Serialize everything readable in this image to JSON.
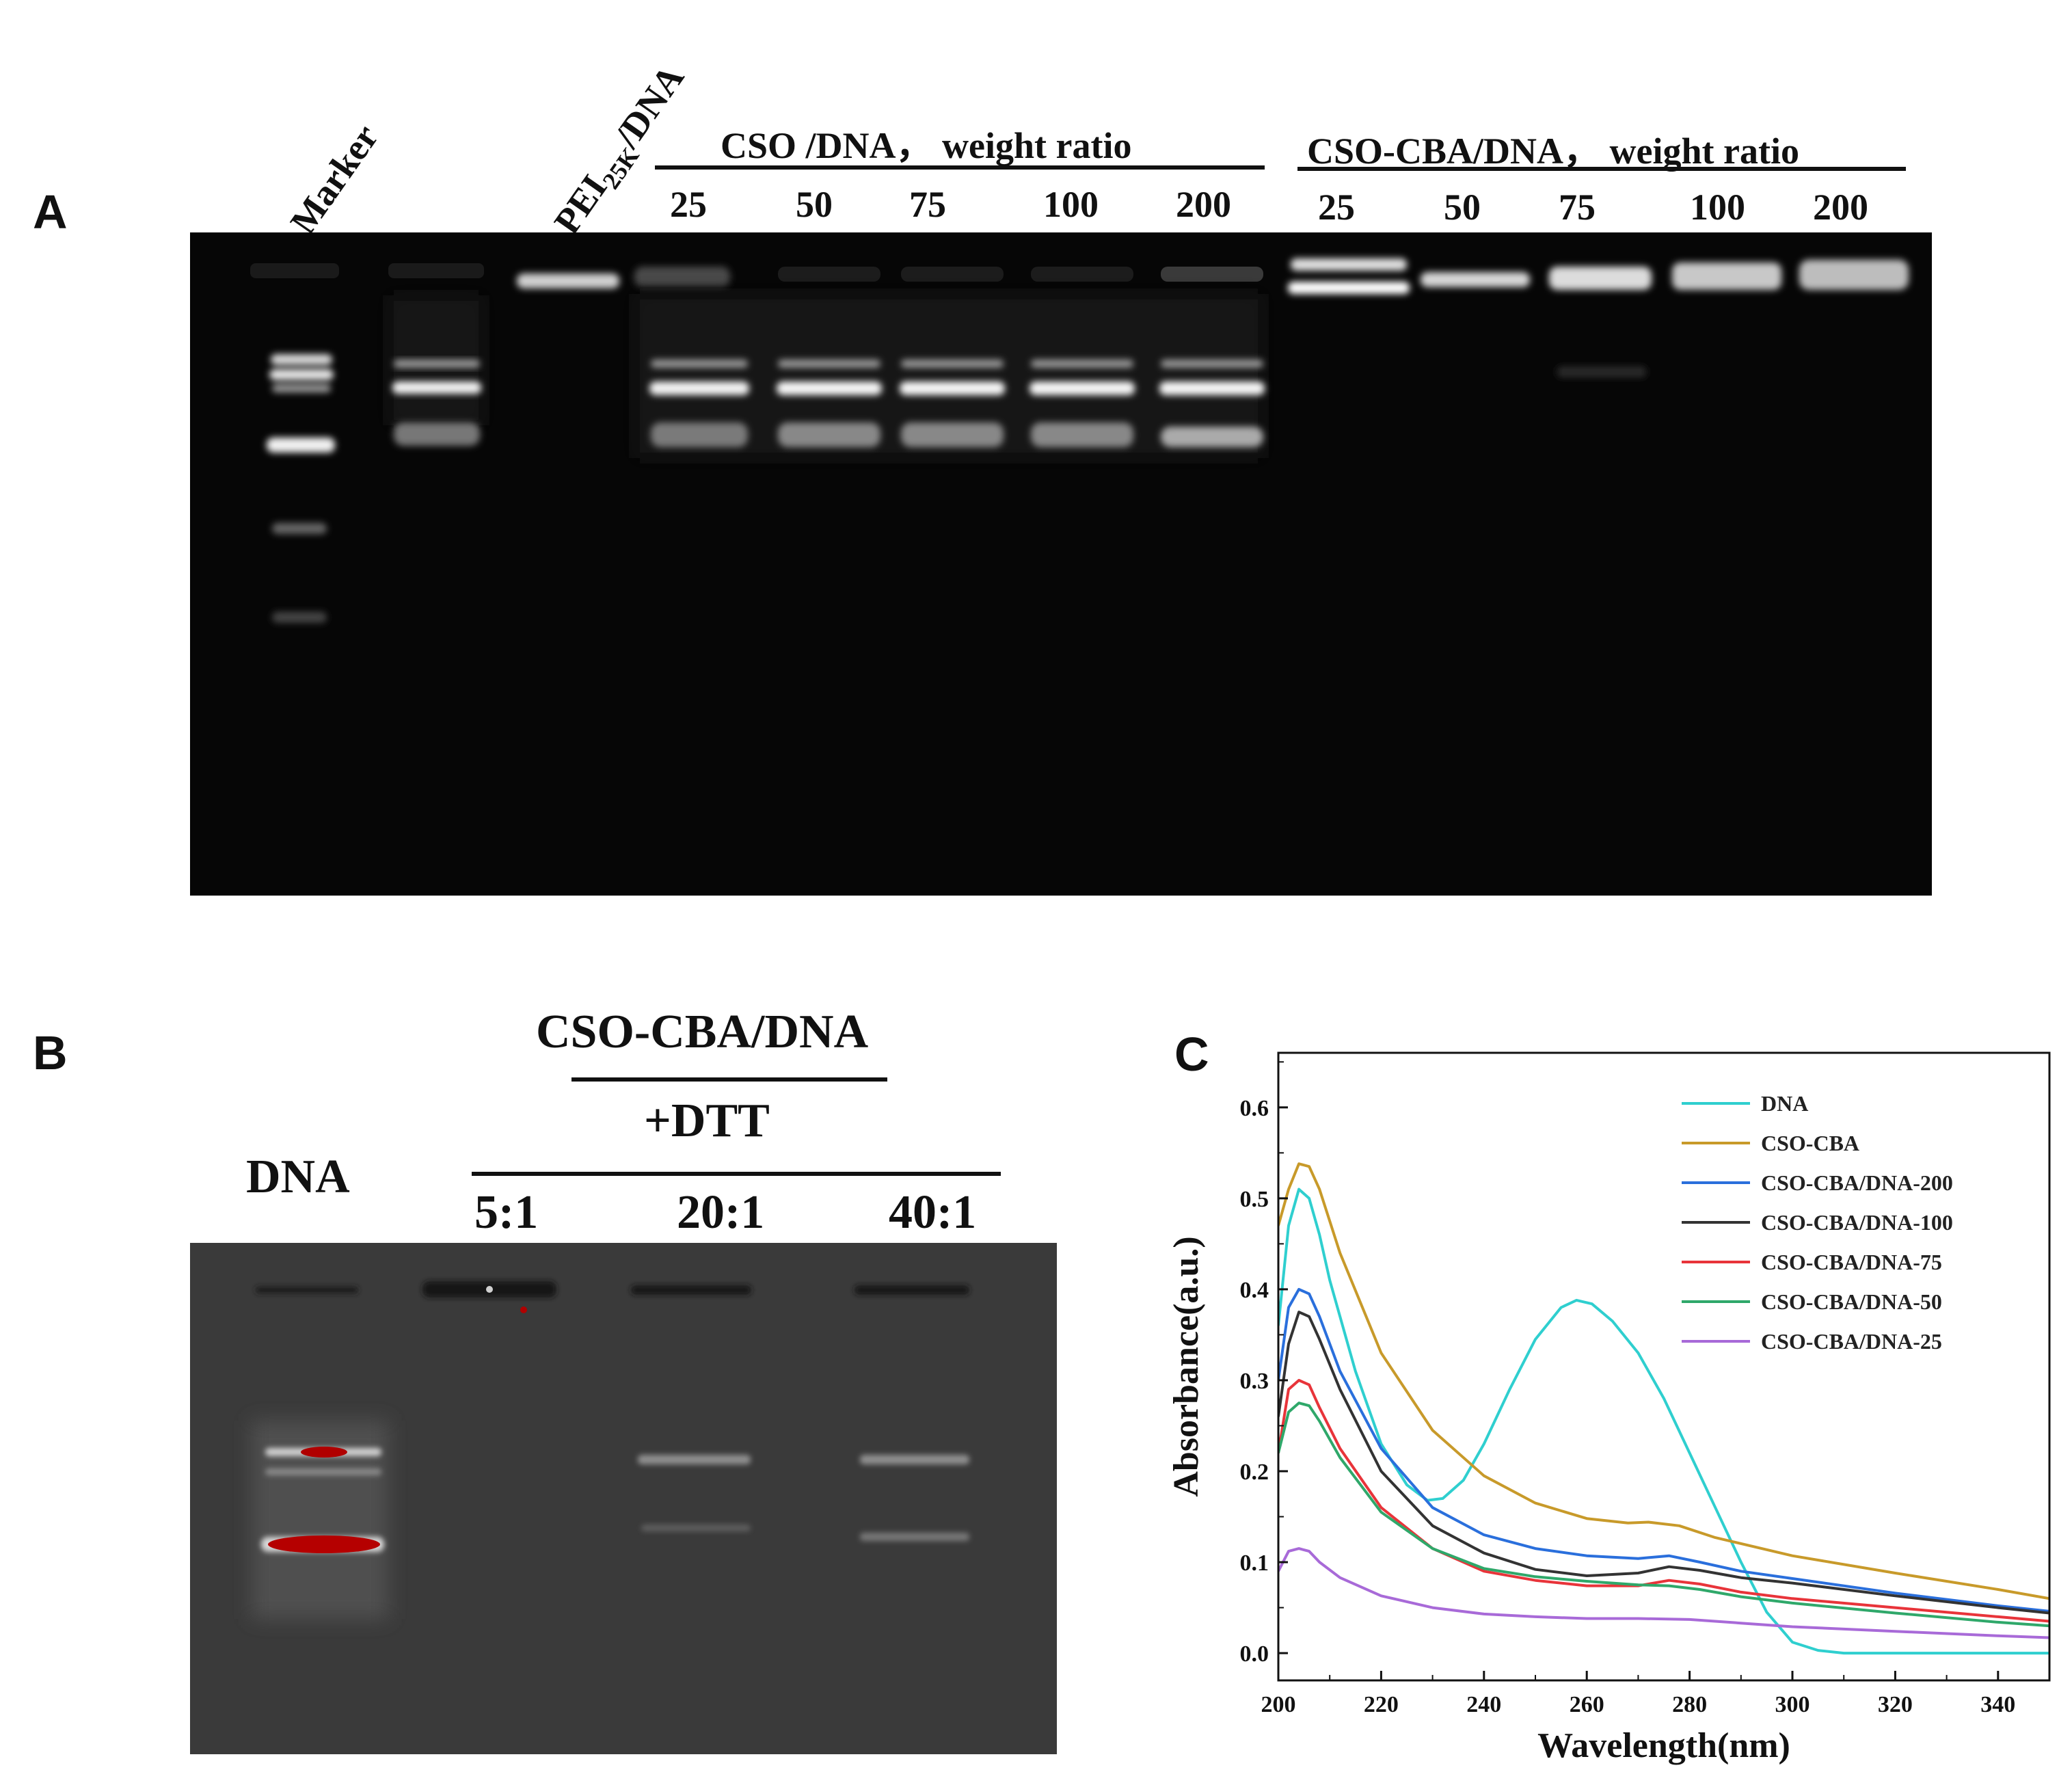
{
  "panelA": {
    "letter": "A",
    "lane_labels": {
      "marker": "Marker",
      "pei_prefix": "PEI",
      "pei_subscript": "25K",
      "pei_suffix": "/DNA"
    },
    "cso_group": {
      "title": "CSO /DNA， weight ratio",
      "ratios": [
        "25",
        "50",
        "75",
        "100",
        "200"
      ]
    },
    "cbo_group": {
      "title": "CSO-CBA/DNA， weight ratio",
      "ratios": [
        "25",
        "50",
        "75",
        "100",
        "200"
      ]
    }
  },
  "panelB": {
    "letter": "B",
    "dna_label": "DNA",
    "group_title": "CSO-CBA/DNA",
    "treatment": "+DTT",
    "ratios": [
      "5:1",
      "20:1",
      "40:1"
    ]
  },
  "panelC": {
    "letter": "C"
  },
  "chart_data": {
    "type": "line",
    "title": "",
    "xlabel": "Wavelength(nm)",
    "ylabel": "Absorbance(a.u.)",
    "xlim": [
      200,
      350
    ],
    "ylim": [
      -0.03,
      0.66
    ],
    "x_ticks": [
      "200",
      "220",
      "240",
      "260",
      "280",
      "300",
      "320",
      "340"
    ],
    "y_ticks": [
      "0.0",
      "0.1",
      "0.2",
      "0.3",
      "0.4",
      "0.5",
      "0.6"
    ],
    "legend_position": "top-right",
    "series": [
      {
        "name": "DNA",
        "color": "#2fcfcf",
        "points": [
          [
            200,
            0.36
          ],
          [
            202,
            0.47
          ],
          [
            204,
            0.51
          ],
          [
            206,
            0.5
          ],
          [
            208,
            0.46
          ],
          [
            210,
            0.41
          ],
          [
            215,
            0.31
          ],
          [
            220,
            0.23
          ],
          [
            225,
            0.185
          ],
          [
            229,
            0.168
          ],
          [
            232,
            0.17
          ],
          [
            236,
            0.19
          ],
          [
            240,
            0.23
          ],
          [
            245,
            0.29
          ],
          [
            250,
            0.345
          ],
          [
            255,
            0.38
          ],
          [
            258,
            0.388
          ],
          [
            261,
            0.384
          ],
          [
            265,
            0.365
          ],
          [
            270,
            0.33
          ],
          [
            275,
            0.28
          ],
          [
            280,
            0.22
          ],
          [
            285,
            0.16
          ],
          [
            290,
            0.1
          ],
          [
            295,
            0.045
          ],
          [
            300,
            0.012
          ],
          [
            305,
            0.003
          ],
          [
            310,
            0.0
          ],
          [
            330,
            0.0
          ],
          [
            350,
            0.0
          ]
        ]
      },
      {
        "name": "CSO-CBA",
        "color": "#c89a2a",
        "points": [
          [
            200,
            0.47
          ],
          [
            202,
            0.51
          ],
          [
            204,
            0.538
          ],
          [
            206,
            0.535
          ],
          [
            208,
            0.51
          ],
          [
            212,
            0.44
          ],
          [
            220,
            0.33
          ],
          [
            230,
            0.245
          ],
          [
            240,
            0.195
          ],
          [
            250,
            0.165
          ],
          [
            260,
            0.148
          ],
          [
            268,
            0.143
          ],
          [
            272,
            0.144
          ],
          [
            278,
            0.14
          ],
          [
            285,
            0.127
          ],
          [
            300,
            0.107
          ],
          [
            320,
            0.088
          ],
          [
            340,
            0.07
          ],
          [
            350,
            0.06
          ]
        ]
      },
      {
        "name": "CSO-CBA/DNA-200",
        "color": "#2a6fdc",
        "points": [
          [
            200,
            0.3
          ],
          [
            202,
            0.38
          ],
          [
            204,
            0.4
          ],
          [
            206,
            0.395
          ],
          [
            208,
            0.37
          ],
          [
            212,
            0.31
          ],
          [
            220,
            0.225
          ],
          [
            230,
            0.16
          ],
          [
            240,
            0.13
          ],
          [
            250,
            0.115
          ],
          [
            260,
            0.107
          ],
          [
            270,
            0.104
          ],
          [
            276,
            0.107
          ],
          [
            282,
            0.1
          ],
          [
            290,
            0.09
          ],
          [
            300,
            0.082
          ],
          [
            320,
            0.066
          ],
          [
            340,
            0.052
          ],
          [
            350,
            0.046
          ]
        ]
      },
      {
        "name": "CSO-CBA/DNA-100",
        "color": "#333333",
        "points": [
          [
            200,
            0.26
          ],
          [
            202,
            0.34
          ],
          [
            204,
            0.375
          ],
          [
            206,
            0.37
          ],
          [
            208,
            0.345
          ],
          [
            212,
            0.29
          ],
          [
            220,
            0.2
          ],
          [
            230,
            0.14
          ],
          [
            240,
            0.11
          ],
          [
            250,
            0.092
          ],
          [
            260,
            0.085
          ],
          [
            270,
            0.088
          ],
          [
            276,
            0.095
          ],
          [
            282,
            0.091
          ],
          [
            290,
            0.083
          ],
          [
            300,
            0.077
          ],
          [
            320,
            0.063
          ],
          [
            340,
            0.05
          ],
          [
            350,
            0.044
          ]
        ]
      },
      {
        "name": "CSO-CBA/DNA-75",
        "color": "#e8343a",
        "points": [
          [
            200,
            0.22
          ],
          [
            202,
            0.29
          ],
          [
            204,
            0.3
          ],
          [
            206,
            0.295
          ],
          [
            208,
            0.27
          ],
          [
            212,
            0.225
          ],
          [
            220,
            0.16
          ],
          [
            230,
            0.115
          ],
          [
            240,
            0.09
          ],
          [
            250,
            0.08
          ],
          [
            260,
            0.074
          ],
          [
            270,
            0.074
          ],
          [
            276,
            0.08
          ],
          [
            282,
            0.076
          ],
          [
            290,
            0.067
          ],
          [
            300,
            0.06
          ],
          [
            320,
            0.05
          ],
          [
            340,
            0.04
          ],
          [
            350,
            0.035
          ]
        ]
      },
      {
        "name": "CSO-CBA/DNA-50",
        "color": "#2fa86a",
        "points": [
          [
            200,
            0.22
          ],
          [
            202,
            0.265
          ],
          [
            204,
            0.275
          ],
          [
            206,
            0.272
          ],
          [
            208,
            0.255
          ],
          [
            212,
            0.215
          ],
          [
            220,
            0.155
          ],
          [
            230,
            0.115
          ],
          [
            240,
            0.093
          ],
          [
            250,
            0.084
          ],
          [
            260,
            0.079
          ],
          [
            270,
            0.075
          ],
          [
            276,
            0.074
          ],
          [
            282,
            0.07
          ],
          [
            290,
            0.062
          ],
          [
            300,
            0.055
          ],
          [
            320,
            0.044
          ],
          [
            340,
            0.034
          ],
          [
            350,
            0.03
          ]
        ]
      },
      {
        "name": "CSO-CBA/DNA-25",
        "color": "#a86ad8",
        "points": [
          [
            200,
            0.09
          ],
          [
            202,
            0.112
          ],
          [
            204,
            0.115
          ],
          [
            206,
            0.112
          ],
          [
            208,
            0.1
          ],
          [
            212,
            0.083
          ],
          [
            220,
            0.063
          ],
          [
            230,
            0.05
          ],
          [
            240,
            0.043
          ],
          [
            250,
            0.04
          ],
          [
            260,
            0.038
          ],
          [
            270,
            0.038
          ],
          [
            280,
            0.037
          ],
          [
            290,
            0.033
          ],
          [
            300,
            0.029
          ],
          [
            320,
            0.024
          ],
          [
            340,
            0.019
          ],
          [
            350,
            0.017
          ]
        ]
      }
    ]
  }
}
